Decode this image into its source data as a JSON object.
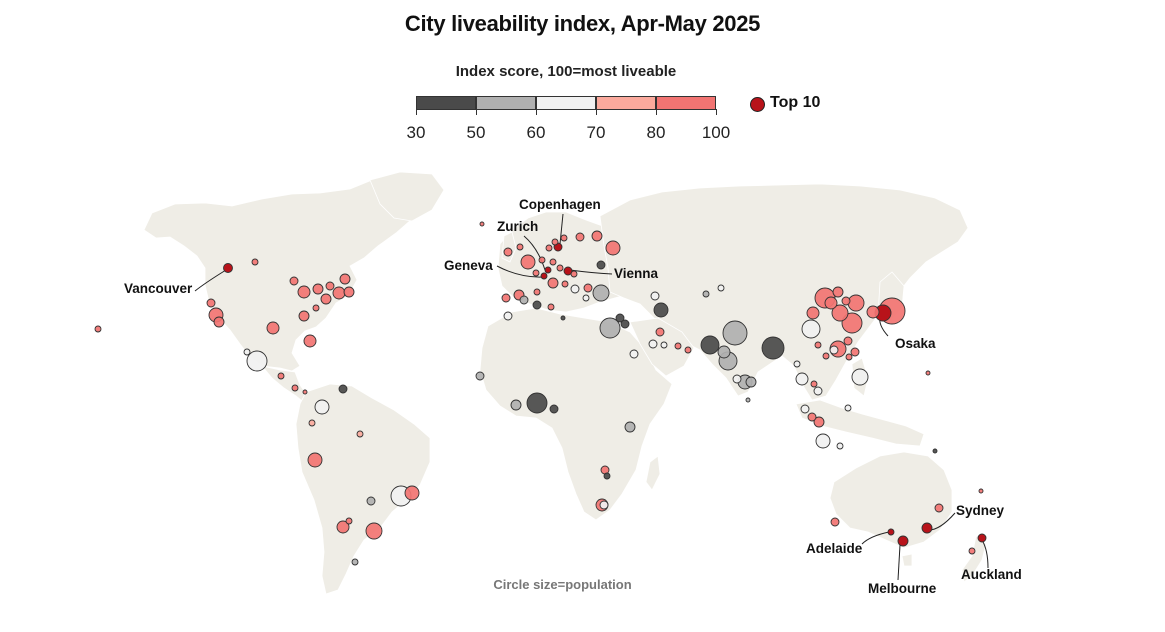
{
  "title": "City liveability index, Apr-May 2025",
  "legend": {
    "title": "Index score, 100=most liveable",
    "bins": [
      {
        "from": 30,
        "to": 50,
        "color": "#4a4a4a"
      },
      {
        "from": 50,
        "to": 60,
        "color": "#b0b0b0"
      },
      {
        "from": 60,
        "to": 70,
        "color": "#f1f1f1"
      },
      {
        "from": 70,
        "to": 80,
        "color": "#fbaa9d"
      },
      {
        "from": 80,
        "to": 100,
        "color": "#f27472"
      }
    ],
    "ticks": [
      "30",
      "50",
      "60",
      "70",
      "80",
      "100"
    ],
    "top10_label": "Top 10",
    "top10_color": "#b8131a"
  },
  "footnote": "Circle size=population",
  "labels": {
    "vancouver": "Vancouver",
    "copenhagen": "Copenhagen",
    "zurich": "Zurich",
    "geneva": "Geneva",
    "vienna": "Vienna",
    "osaka": "Osaka",
    "sydney": "Sydney",
    "adelaide": "Adelaide",
    "melbourne": "Melbourne",
    "auckland": "Auckland"
  },
  "colors": {
    "land": "#efede6",
    "land_border": "#ffffff"
  }
}
